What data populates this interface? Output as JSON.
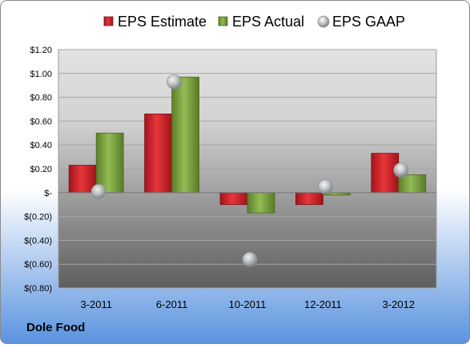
{
  "chart_data": {
    "type": "bar",
    "company": "Dole Food",
    "categories": [
      "3-2011",
      "6-2011",
      "10-2011",
      "12-2011",
      "3-2012"
    ],
    "series": [
      {
        "name": "EPS Estimate",
        "kind": "bar",
        "color": "#cc1f26",
        "values": [
          0.23,
          0.66,
          -0.1,
          -0.1,
          0.33
        ]
      },
      {
        "name": "EPS Actual",
        "kind": "bar",
        "color": "#77a03b",
        "values": [
          0.5,
          0.97,
          -0.17,
          -0.02,
          0.15
        ]
      },
      {
        "name": "EPS GAAP",
        "kind": "marker",
        "color": "#a8adb3",
        "values": [
          0.01,
          0.93,
          -0.56,
          0.05,
          0.19
        ]
      }
    ],
    "y_ticks": [
      1.2,
      1.0,
      0.8,
      0.6,
      0.4,
      0.2,
      0,
      -0.2,
      -0.4,
      -0.6,
      -0.8
    ],
    "y_tick_labels": [
      "$1.20",
      "$1.00",
      "$0.80",
      "$0.60",
      "$0.40",
      "$0.20",
      "$-",
      "$(0.20)",
      "$(0.40)",
      "$(0.60)",
      "$(0.80)"
    ],
    "ylim": [
      -0.8,
      1.2
    ],
    "legend_position": "top",
    "grid": true,
    "background_gradient": [
      "#ffffff",
      "#5a93df"
    ],
    "plot_gradient": [
      "#e3e3e3",
      "#5e5e5e"
    ]
  }
}
